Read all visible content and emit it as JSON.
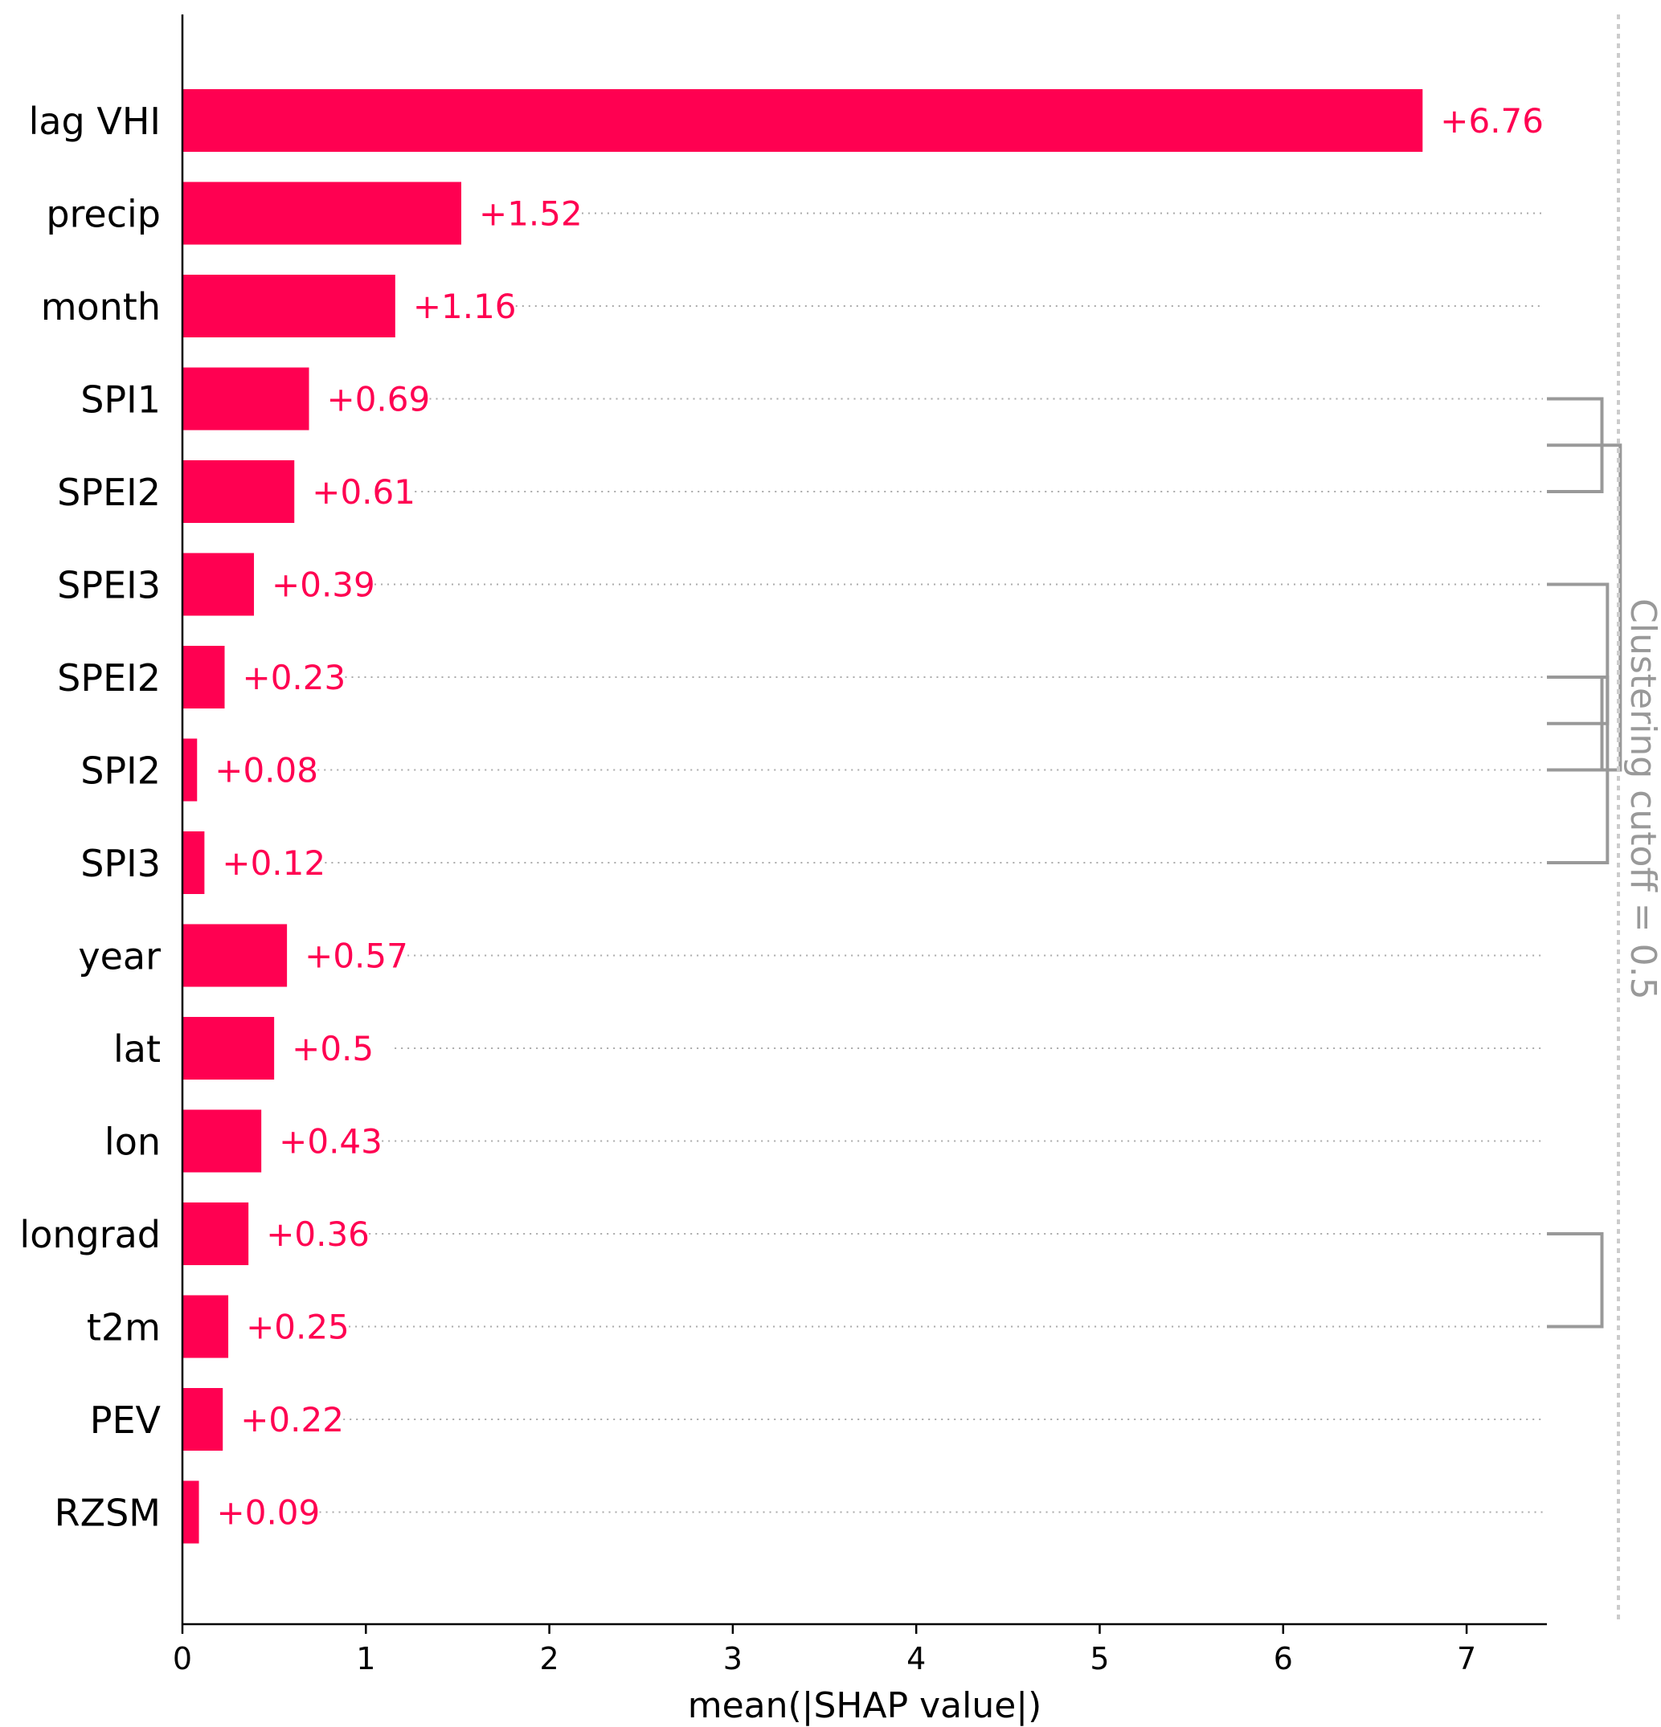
{
  "chart_data": {
    "type": "bar",
    "orientation": "horizontal",
    "categories": [
      "lag VHI",
      "precip",
      "month",
      "SPI1",
      "SPEI2",
      "SPEI3",
      "SPEI2",
      "SPI2",
      "SPI3",
      "year",
      "lat",
      "lon",
      "longrad",
      "t2m",
      "PEV",
      "RZSM"
    ],
    "values": [
      6.76,
      1.52,
      1.16,
      0.69,
      0.61,
      0.39,
      0.23,
      0.08,
      0.12,
      0.57,
      0.5,
      0.43,
      0.36,
      0.25,
      0.22,
      0.09
    ],
    "value_labels": [
      "+6.76",
      "+1.52",
      "+1.16",
      "+0.69",
      "+0.61",
      "+0.39",
      "+0.23",
      "+0.08",
      "+0.12",
      "+0.57",
      "+0.5",
      "+0.43",
      "+0.36",
      "+0.25",
      "+0.22",
      "+0.09"
    ],
    "xlabel": "mean(|SHAP value|)",
    "ylabel": "",
    "title": "",
    "xlim": [
      0,
      7.45
    ],
    "xticks": [
      "0",
      "1",
      "2",
      "3",
      "4",
      "5",
      "6",
      "7"
    ],
    "cutoff_label": "Clustering cutoff = 0.5",
    "clusters": [
      {
        "rows": [
          3,
          4
        ],
        "height": 0.3
      },
      {
        "rows": [
          6,
          7
        ],
        "height": 0.3
      },
      {
        "rows": [
          5,
          6.5
        ],
        "height": 0.33
      },
      {
        "rows": [
          6,
          8
        ],
        "height": 0.33
      },
      {
        "rows": [
          3.5,
          7
        ],
        "height": 0.4
      },
      {
        "rows": [
          12,
          13
        ],
        "height": 0.3
      }
    ],
    "colors": {
      "bar": "#ff0051",
      "value_text": "#ff0051",
      "dendrogram": "#999999",
      "gridline": "#aaaaaa"
    }
  }
}
